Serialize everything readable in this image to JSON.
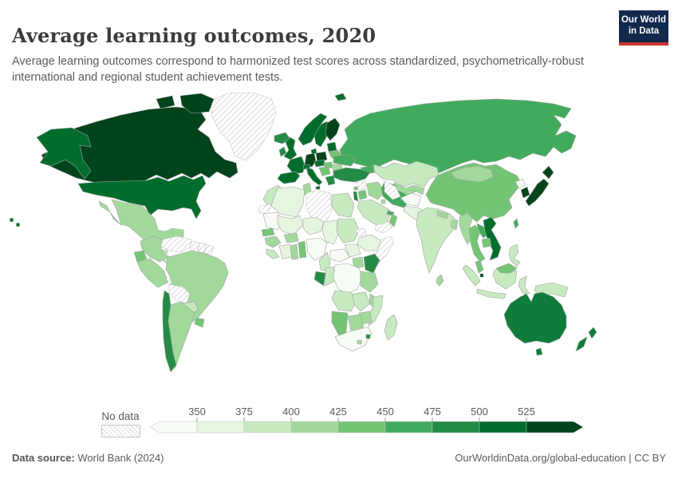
{
  "header": {
    "title": "Average learning outcomes, 2020",
    "subtitle": "Average learning outcomes correspond to harmonized test scores across standardized, psychometrically-robust international and regional student achievement tests.",
    "logo_line1": "Our World",
    "logo_line2": "in Data",
    "logo_bg": "#12294d",
    "logo_red": "#d0342c"
  },
  "legend": {
    "no_data_label": "No data",
    "ticks": [
      "350",
      "375",
      "400",
      "425",
      "450",
      "475",
      "500",
      "525"
    ],
    "colors": [
      "#f7fcf5",
      "#e5f5e0",
      "#c7e9c0",
      "#a1d99b",
      "#74c476",
      "#41ab5d",
      "#238b45",
      "#006d2c",
      "#00441b"
    ]
  },
  "footer": {
    "source_label": "Data source:",
    "source_value": " World Bank (2024)",
    "credit": "OurWorldinData.org/global-education | CC BY"
  },
  "chart_data": {
    "type": "choropleth_map",
    "title": "Average learning outcomes, 2020",
    "value_bins": [
      "<350",
      "350–375",
      "375–400",
      "400–425",
      "425–450",
      "450–475",
      "475–500",
      "500–525",
      ">525"
    ],
    "bin_colors": [
      "#f7fcf5",
      "#e5f5e0",
      "#c7e9c0",
      "#a1d99b",
      "#74c476",
      "#41ab5d",
      "#238b45",
      "#006d2c",
      "#00441b"
    ],
    "no_data_style": "hatch",
    "regions": {
      "canada": "#00441b",
      "baffin_islands": "#00441b",
      "alaska": "#006d2c",
      "usa": "#006d2c",
      "hawaii": "#006d2c",
      "greenland": "hatch",
      "iceland": "#238b45",
      "mexico": "#a1d99b",
      "guatemala": "#74c476",
      "honduras": "#c7e9c0",
      "nicaragua": "#c7e9c0",
      "costa_rica": "#74c476",
      "panama": "#a1d99b",
      "cuba": "hatch",
      "hispaniola": "hatch",
      "trinidad": "#006d2c",
      "colombia": "#a1d99b",
      "venezuela": "hatch",
      "guyana": "hatch",
      "suriname": "hatch",
      "french_guiana": "hatch",
      "ecuador": "#74c476",
      "peru": "#a1d99b",
      "brazil": "#a1d99b",
      "bolivia": "hatch",
      "paraguay": "#c7e9c0",
      "uruguay": "#74c476",
      "argentina": "#a1d99b",
      "chile": "#238b45",
      "norway": "#006d2c",
      "sweden": "#006d2c",
      "finland": "#00441b",
      "denmark": "#006d2c",
      "uk": "#006d2c",
      "ireland": "#238b45",
      "baltics": "#006d2c",
      "belarus": "#74c476",
      "poland": "#00441b",
      "germany": "#00441b",
      "france": "#006d2c",
      "spain": "#006d2c",
      "italy": "#006d2c",
      "sicily": "#006d2c",
      "switzerland": "#006d2c",
      "austria_czech": "#006d2c",
      "hungary": "#74c476",
      "ukraine": "#41ab5d",
      "romania": "#a1d99b",
      "balkans": "#74c476",
      "bulgaria": "#74c476",
      "greece": "#238b45",
      "svalbard": "#006d2c",
      "russia": "#41ab5d",
      "caucasus": "#41ab5d",
      "turkey": "#238b45",
      "syria": "hatch",
      "lebanon": "#74c476",
      "israel": "#238b45",
      "jordan": "#74c476",
      "iraq": "#a1d99b",
      "iran": "#41ab5d",
      "saudi_arabia": "#c7e9c0",
      "yemen": "hatch",
      "oman": "#74c476",
      "uae": "#41ab5d",
      "kuwait": "#a1d99b",
      "kazakhstan": "#c7e9c0",
      "uzbekistan": "#a1d99b",
      "turkmenistan": "hatch",
      "kyrgyzstan_tajikistan": "#a1d99b",
      "afghanistan": "#f7fcf5",
      "pakistan": "#e5f5e0",
      "india": "#c7e9c0",
      "nepal": "#a1d99b",
      "bangladesh": "#a1d99b",
      "sri_lanka": "#a1d99b",
      "china": "#74c476",
      "mongolia": "#a1d99b",
      "north_korea": "#f7fcf5",
      "south_korea": "#00441b",
      "japan": "#00441b",
      "taiwan": "#41ab5d",
      "myanmar": "#a1d99b",
      "thailand": "#74c476",
      "laos": "#41ab5d",
      "vietnam": "#006d2c",
      "cambodia": "#74c476",
      "malaysia": "#74c476",
      "malaysia_borneo": "#74c476",
      "singapore": "#00441b",
      "sumatra": "#c7e9c0",
      "java": "#c7e9c0",
      "borneo": "#c7e9c0",
      "sulawesi": "#c7e9c0",
      "papua": "#c7e9c0",
      "philippines": "#c7e9c0",
      "morocco": "#c7e9c0",
      "western_sahara": "hatch",
      "algeria": "#e5f5e0",
      "tunisia": "#a1d99b",
      "libya": "hatch",
      "egypt": "#c7e9c0",
      "mauritania": "#f7fcf5",
      "mali": "#e5f5e0",
      "niger": "#e5f5e0",
      "chad": "#e5f5e0",
      "sudan": "#c7e9c0",
      "eritrea": "hatch",
      "ethiopia": "#e5f5e0",
      "somalia": "hatch",
      "senegal": "#74c476",
      "guinea": "#a1d99b",
      "sierra_leone": "#c7e9c0",
      "ivory_coast": "#e5f5e0",
      "burkina_faso": "#a1d99b",
      "ghana": "#a1d99b",
      "togo_benin": "#74c476",
      "nigeria": "#f7fcf5",
      "cameroon": "#c7e9c0",
      "car": "#f7fcf5",
      "south_sudan": "#e5f5e0",
      "uganda": "#a1d99b",
      "kenya": "#238b45",
      "gabon": "#238b45",
      "congo": "#c7e9c0",
      "drc": "#f7fcf5",
      "rwanda_burundi": "#74c476",
      "tanzania": "#a1d99b",
      "angola": "#c7e9c0",
      "zambia": "#c7e9c0",
      "malawi": "#a1d99b",
      "mozambique": "#c7e9c0",
      "zimbabwe": "#a1d99b",
      "botswana": "#a1d99b",
      "namibia": "#74c476",
      "south_africa": "#f7fcf5",
      "lesotho": "#a1d99b",
      "eswatini": "#238b45",
      "madagascar": "#c7e9c0",
      "australia": "#0e7c3a",
      "tasmania": "#0e7c3a",
      "new_zealand_north": "#0e7c3a",
      "new_zealand_south": "#0e7c3a"
    }
  }
}
